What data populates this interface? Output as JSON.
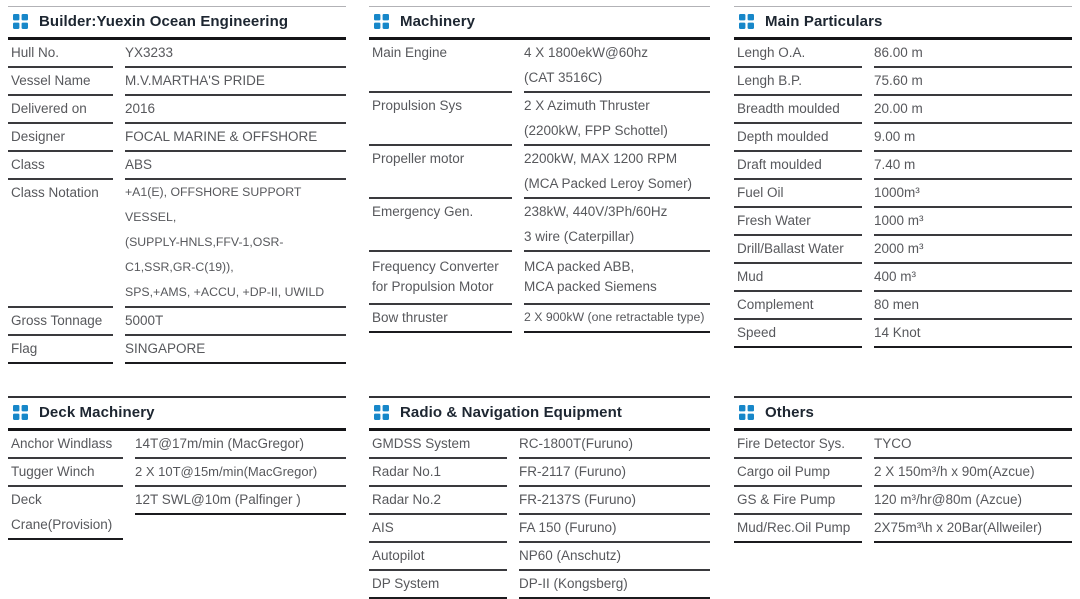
{
  "colors": {
    "accent_blue": "#1787c9",
    "header_text": "#1d2631",
    "body_text": "#57585c",
    "line_dark": "#141417",
    "line_row": "#3a3a3e"
  },
  "panels": [
    {
      "id": "builder",
      "title": "Builder:Yuexin Ocean Engineering",
      "icon": "grid-icon",
      "rows": [
        {
          "label": "Hull No.",
          "value": "YX3233"
        },
        {
          "label": "Vessel Name",
          "value": "M.V.MARTHA'S PRIDE"
        },
        {
          "label": "Delivered on",
          "value": "2016"
        },
        {
          "label": "Designer",
          "value": "FOCAL MARINE & OFFSHORE"
        },
        {
          "label": "Class",
          "value": "ABS"
        },
        {
          "label": "Class Notation",
          "value": [
            "+A1(E), OFFSHORE SUPPORT VESSEL,",
            "(SUPPLY-HNLS,FFV-1,OSR-C1,SSR,GR-C(19)),",
            "SPS,+AMS, +ACCU, +DP-II, UWILD"
          ]
        },
        {
          "label": "Gross Tonnage",
          "value": "5000T"
        },
        {
          "label": "Flag",
          "value": "SINGAPORE"
        }
      ]
    },
    {
      "id": "machinery",
      "title": "Machinery",
      "icon": "grid-icon",
      "rows": [
        {
          "label": "Main Engine",
          "value": [
            "4 X 1800ekW@60hz",
            "(CAT 3516C)"
          ]
        },
        {
          "label": "Propulsion Sys",
          "value": [
            "2 X Azimuth Thruster",
            "(2200kW,  FPP Schottel)"
          ]
        },
        {
          "label": "Propeller motor",
          "value": [
            "2200kW, MAX 1200 RPM",
            "(MCA Packed Leroy Somer)"
          ]
        },
        {
          "label": "Emergency Gen.",
          "value": [
            "238kW, 440V/3Ph/60Hz",
            "3 wire  (Caterpillar)"
          ]
        },
        {
          "label": [
            "Frequency Converter",
            "for Propulsion Motor"
          ],
          "value": [
            "MCA packed ABB,",
            "MCA packed Siemens"
          ]
        },
        {
          "label": "Bow thruster",
          "value": "2 X 900kW (one retractable type)"
        }
      ]
    },
    {
      "id": "particulars",
      "title": "Main Particulars",
      "icon": "grid-icon",
      "rows": [
        {
          "label": "Lengh O.A.",
          "value": "86.00 m"
        },
        {
          "label": "Lengh B.P.",
          "value": "75.60 m"
        },
        {
          "label": "Breadth moulded",
          "value": "20.00 m"
        },
        {
          "label": "Depth moulded",
          "value": "9.00 m"
        },
        {
          "label": "Draft moulded",
          "value": "7.40 m"
        },
        {
          "label": "Fuel Oil",
          "value": "1000m³"
        },
        {
          "label": "Fresh Water",
          "value": "1000 m³"
        },
        {
          "label": "Drill/Ballast Water",
          "value": "2000 m³"
        },
        {
          "label": "Mud",
          "value": "400 m³"
        },
        {
          "label": "Complement",
          "value": "80 men"
        },
        {
          "label": "Speed",
          "value": "14 Knot"
        }
      ]
    },
    {
      "id": "deck",
      "title": "Deck Machinery",
      "icon": "grid-icon",
      "rows": [
        {
          "label": "Anchor Windlass",
          "value": "14T@17m/min (MacGregor)"
        },
        {
          "label": "Tugger Winch",
          "value": "2 X 10T@15m/min(MacGregor)"
        },
        {
          "label": [
            "Deck",
            "Crane(Provision)"
          ],
          "value": "12T SWL@10m (Palfinger )"
        }
      ]
    },
    {
      "id": "radio",
      "title": "Radio & Navigation Equipment",
      "icon": "grid-icon",
      "rows": [
        {
          "label": "GMDSS System",
          "value": "RC-1800T(Furuno)"
        },
        {
          "label": "Radar No.1",
          "value": "FR-2117 (Furuno)"
        },
        {
          "label": "Radar No.2",
          "value": "FR-2137S (Furuno)"
        },
        {
          "label": "AIS",
          "value": "FA 150 (Furuno)"
        },
        {
          "label": "Autopilot",
          "value": "NP60 (Anschutz)"
        },
        {
          "label": "DP System",
          "value": "DP-II (Kongsberg)"
        }
      ]
    },
    {
      "id": "others",
      "title": "Others",
      "icon": "grid-icon",
      "rows": [
        {
          "label": "Fire Detector Sys.",
          "value": "TYCO"
        },
        {
          "label": "Cargo oil Pump",
          "value": "2 X 150m³/h x 90m(Azcue)"
        },
        {
          "label": "GS & Fire Pump",
          "value": "120 m³/hr@80m (Azcue)"
        },
        {
          "label": "Mud/Rec.Oil Pump",
          "value": "2X75m³\\h x 20Bar(Allweiler)"
        }
      ]
    }
  ]
}
